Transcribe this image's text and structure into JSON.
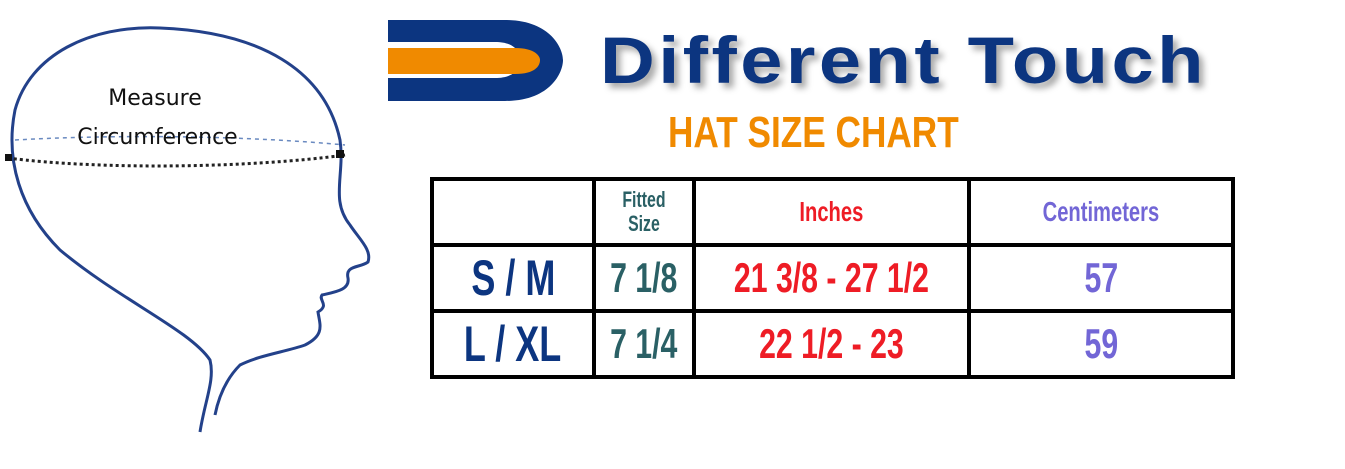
{
  "brand": {
    "name": "Different Touch",
    "logo_letter": "D",
    "colors": {
      "blue": "#0c3580",
      "orange": "#f08a00"
    }
  },
  "title": "HAT SIZE CHART",
  "diagram": {
    "label_line1": "Measure",
    "label_line2": "Circumference"
  },
  "table": {
    "headers": [
      "",
      "Fitted Size",
      "Inches",
      "Centimeters"
    ],
    "header_fitted_line1": "Fitted",
    "header_fitted_line2": "Size",
    "rows": [
      {
        "size": "S / M",
        "fitted": "7 1/8",
        "inches": "21 3/8 - 27 1/2",
        "cm": "57"
      },
      {
        "size": "L / XL",
        "fitted": "7 1/4",
        "inches": "22 1/2 - 23",
        "cm": "59"
      }
    ],
    "colors": {
      "size": "#0c3580",
      "fitted": "#2a6065",
      "inches": "#ee1c25",
      "cm": "#7266d6"
    }
  }
}
